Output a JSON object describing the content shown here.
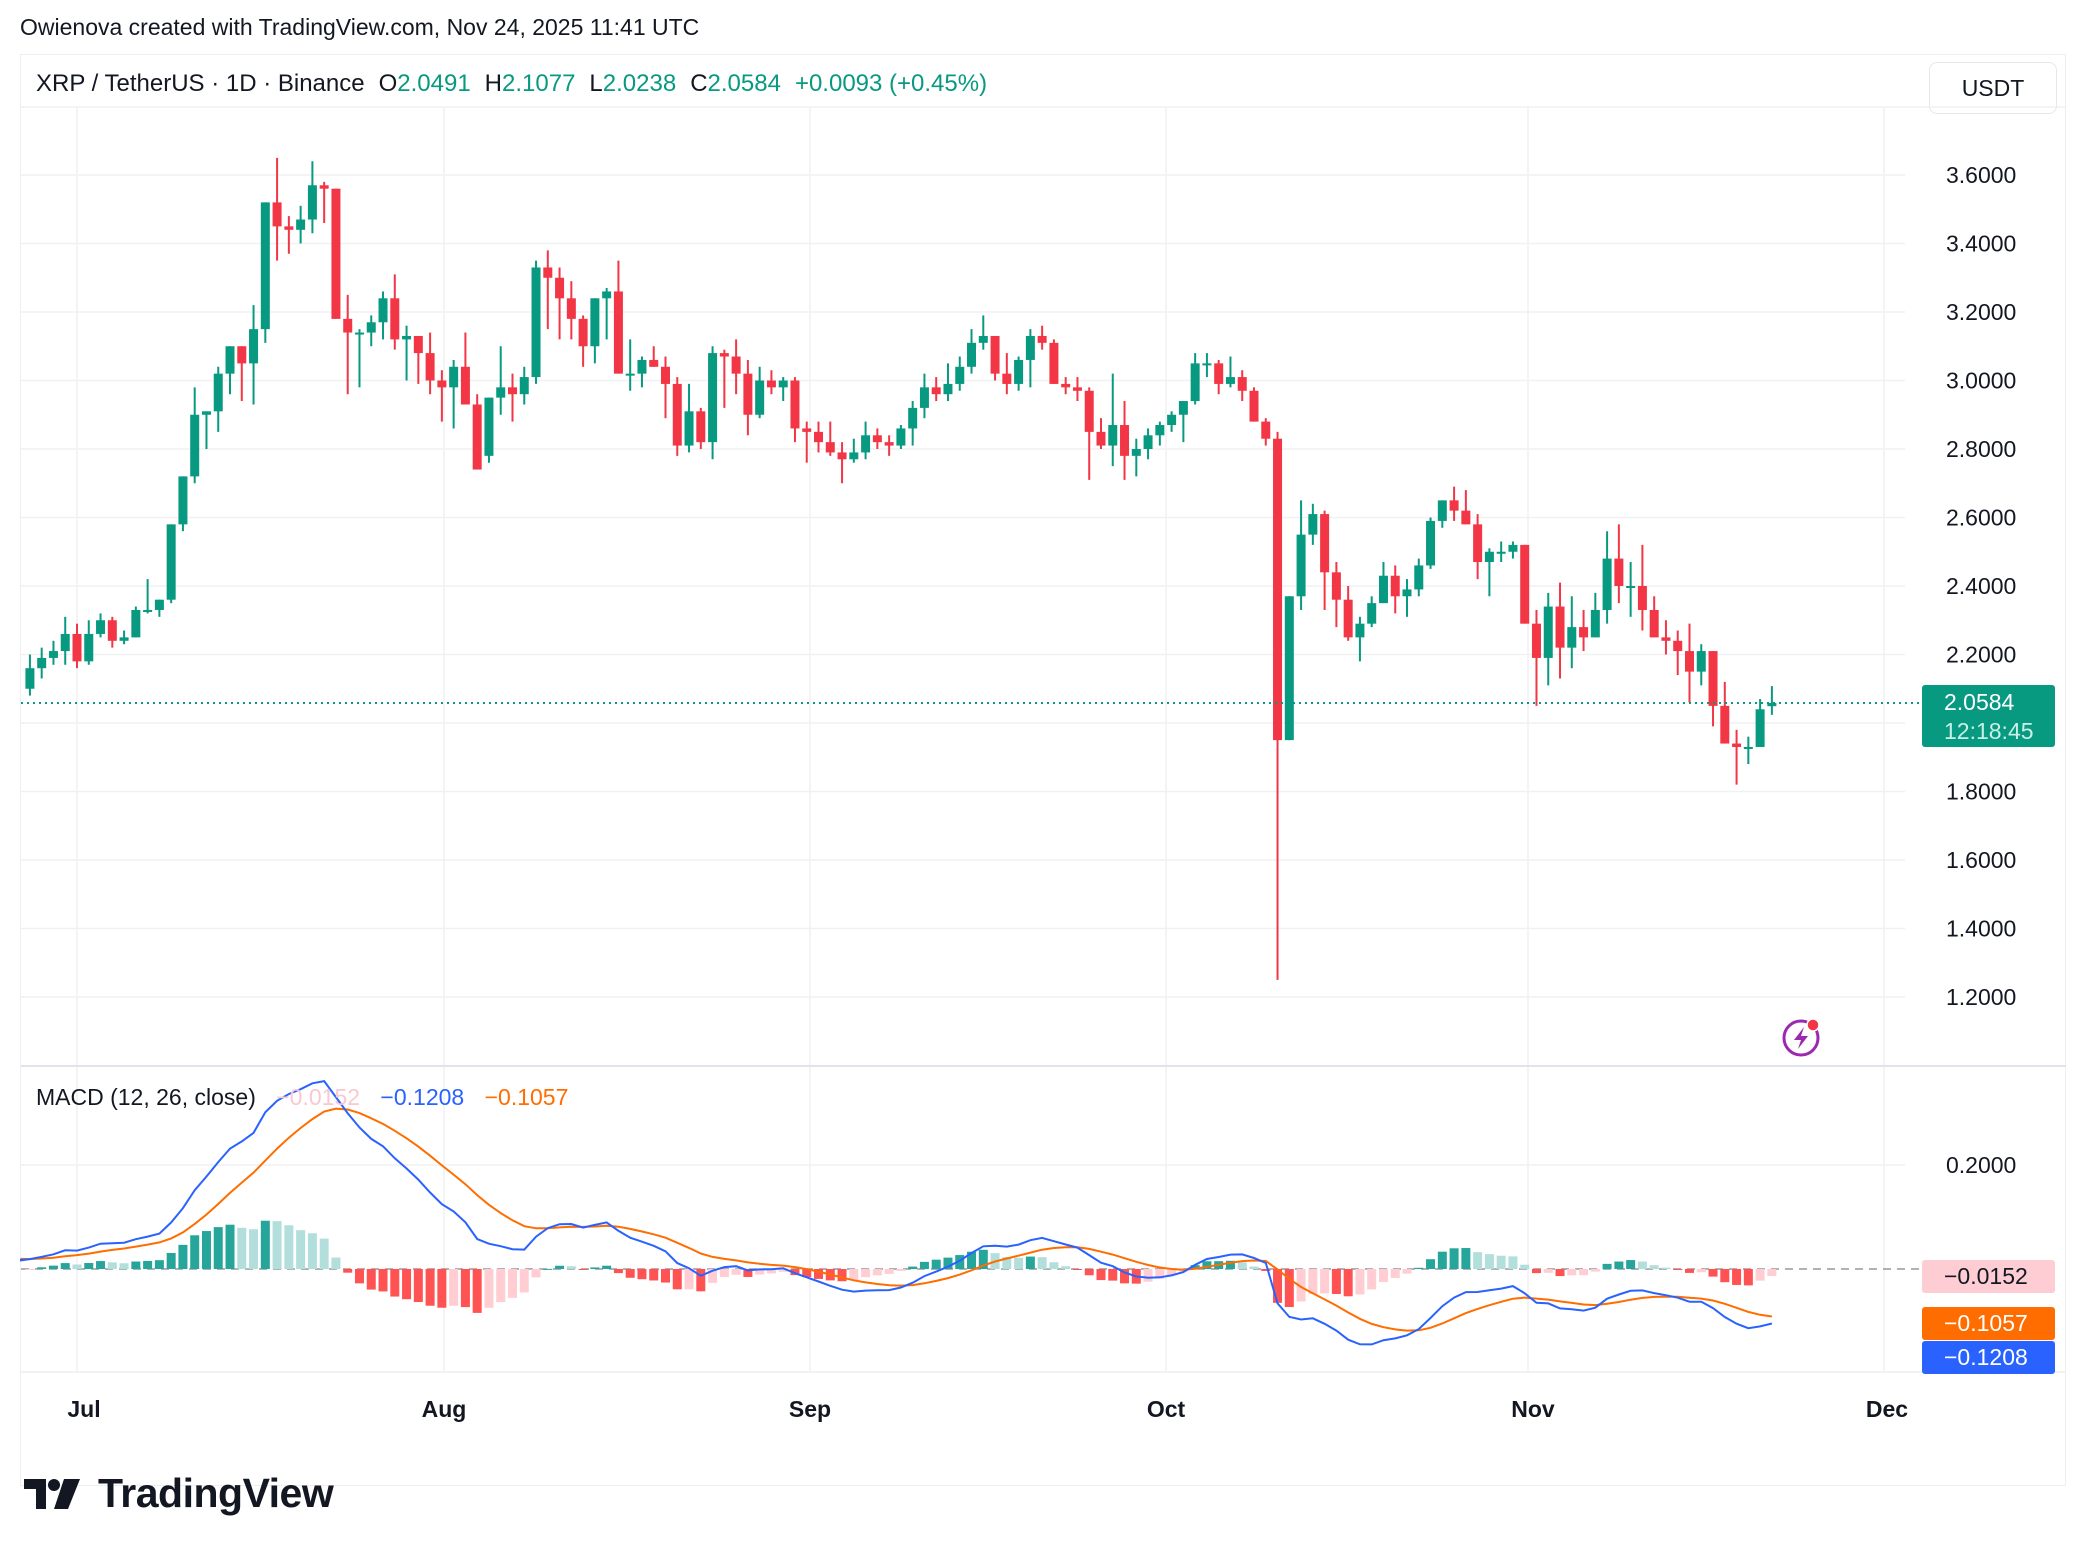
{
  "credit": "Owienova created with TradingView.com, Nov 24, 2025 11:41 UTC",
  "header": {
    "symbol": "XRP / TetherUS · 1D · Binance",
    "open_label": "O",
    "open": "2.0491",
    "high_label": "H",
    "high": "2.1077",
    "low_label": "L",
    "low": "2.0238",
    "close_label": "C",
    "close": "2.0584",
    "change": "+0.0093 (+0.45%)",
    "currency": "USDT"
  },
  "last_price": {
    "value": "2.0584",
    "countdown": "12:18:45"
  },
  "colors": {
    "up": "#089981",
    "down": "#f23645",
    "macd": "#2962ff",
    "signal": "#ff6d00",
    "hist_up_strong": "#26a69a",
    "hist_up_weak": "#b2dfdb",
    "hist_down_strong": "#ff5252",
    "hist_down_weak": "#ffcdd2"
  },
  "price_axis": {
    "ticks": [
      "3.6000",
      "3.4000",
      "3.2000",
      "3.0000",
      "2.8000",
      "2.6000",
      "2.4000",
      "2.2000",
      "2.0000",
      "1.8000",
      "1.6000",
      "1.4000",
      "1.2000"
    ]
  },
  "time_axis": {
    "labels": [
      "Jul",
      "Aug",
      "Sep",
      "Oct",
      "Nov",
      "Dec"
    ]
  },
  "macd": {
    "title": "MACD (12, 26, close)",
    "histogram": "−0.0152",
    "macd": "−0.1208",
    "signal": "−0.1057",
    "axis_tick": "0.2000"
  },
  "logo": "TradingView",
  "chart_data": {
    "type": "candlestick",
    "title": "XRP / TetherUS · 1D · Binance",
    "start_date": "2025-06-25",
    "xlabel": "",
    "ylabel": "USDT",
    "ylim": [
      1.1,
      3.75
    ],
    "x_ticks": [
      "Jul",
      "Aug",
      "Sep",
      "Oct",
      "Nov",
      "Dec"
    ],
    "y_ticks": [
      1.2,
      1.4,
      1.6,
      1.8,
      2.0,
      2.2,
      2.4,
      2.6,
      2.8,
      3.0,
      3.2,
      3.4,
      3.6
    ],
    "grid": true,
    "ohlc": [
      [
        2.2,
        2.22,
        2.12,
        2.14
      ],
      [
        2.13,
        2.16,
        2.08,
        2.1
      ],
      [
        2.1,
        2.2,
        2.08,
        2.16
      ],
      [
        2.16,
        2.22,
        2.13,
        2.19
      ],
      [
        2.19,
        2.24,
        2.17,
        2.21
      ],
      [
        2.21,
        2.31,
        2.17,
        2.26
      ],
      [
        2.26,
        2.29,
        2.16,
        2.18
      ],
      [
        2.18,
        2.3,
        2.17,
        2.26
      ],
      [
        2.26,
        2.32,
        2.25,
        2.3
      ],
      [
        2.3,
        2.31,
        2.22,
        2.24
      ],
      [
        2.24,
        2.27,
        2.23,
        2.25
      ],
      [
        2.25,
        2.34,
        2.25,
        2.33
      ],
      [
        2.33,
        2.42,
        2.32,
        2.33
      ],
      [
        2.33,
        2.36,
        2.31,
        2.36
      ],
      [
        2.36,
        2.57,
        2.35,
        2.58
      ],
      [
        2.58,
        2.66,
        2.56,
        2.72
      ],
      [
        2.72,
        2.98,
        2.7,
        2.9
      ],
      [
        2.9,
        2.89,
        2.8,
        2.91
      ],
      [
        2.91,
        3.04,
        2.85,
        3.02
      ],
      [
        3.02,
        3.1,
        2.96,
        3.1
      ],
      [
        3.1,
        3.08,
        2.94,
        3.05
      ],
      [
        3.05,
        3.22,
        2.93,
        3.15
      ],
      [
        3.15,
        3.49,
        3.11,
        3.52
      ],
      [
        3.52,
        3.65,
        3.35,
        3.45
      ],
      [
        3.45,
        3.48,
        3.37,
        3.44
      ],
      [
        3.44,
        3.51,
        3.4,
        3.47
      ],
      [
        3.47,
        3.64,
        3.43,
        3.57
      ],
      [
        3.57,
        3.58,
        3.46,
        3.56
      ],
      [
        3.56,
        3.56,
        3.18,
        3.18
      ],
      [
        3.18,
        3.25,
        2.96,
        3.14
      ],
      [
        3.14,
        3.15,
        2.98,
        3.14
      ],
      [
        3.14,
        3.19,
        3.1,
        3.17
      ],
      [
        3.17,
        3.26,
        3.12,
        3.24
      ],
      [
        3.24,
        3.31,
        3.09,
        3.12
      ],
      [
        3.12,
        3.16,
        3.0,
        3.13
      ],
      [
        3.13,
        3.13,
        2.99,
        3.08
      ],
      [
        3.08,
        3.14,
        2.96,
        3.0
      ],
      [
        3.0,
        3.03,
        2.88,
        2.98
      ],
      [
        2.98,
        3.06,
        2.86,
        3.04
      ],
      [
        3.04,
        3.14,
        2.95,
        2.93
      ],
      [
        2.93,
        2.96,
        2.84,
        2.74
      ],
      [
        2.78,
        2.93,
        2.76,
        2.95
      ],
      [
        2.95,
        3.1,
        2.9,
        2.98
      ],
      [
        2.98,
        3.02,
        2.88,
        2.96
      ],
      [
        2.96,
        3.04,
        2.93,
        3.01
      ],
      [
        3.01,
        3.35,
        2.99,
        3.33
      ],
      [
        3.33,
        3.38,
        3.15,
        3.3
      ],
      [
        3.3,
        3.33,
        3.12,
        3.24
      ],
      [
        3.24,
        3.29,
        3.12,
        3.18
      ],
      [
        3.18,
        3.19,
        3.04,
        3.1
      ],
      [
        3.1,
        3.18,
        3.05,
        3.24
      ],
      [
        3.24,
        3.27,
        3.12,
        3.26
      ],
      [
        3.26,
        3.35,
        3.08,
        3.02
      ],
      [
        3.02,
        3.12,
        2.97,
        3.02
      ],
      [
        3.02,
        3.07,
        2.98,
        3.06
      ],
      [
        3.06,
        3.1,
        3.04,
        3.04
      ],
      [
        3.04,
        3.07,
        2.89,
        2.99
      ],
      [
        2.99,
        3.01,
        2.78,
        2.81
      ],
      [
        2.81,
        2.99,
        2.79,
        2.91
      ],
      [
        2.91,
        2.92,
        2.8,
        2.82
      ],
      [
        2.82,
        3.1,
        2.77,
        3.08
      ],
      [
        3.08,
        3.09,
        2.92,
        3.07
      ],
      [
        3.07,
        3.12,
        2.96,
        3.02
      ],
      [
        3.02,
        3.06,
        2.84,
        2.9
      ],
      [
        2.9,
        3.04,
        2.89,
        3.0
      ],
      [
        3.0,
        3.03,
        2.96,
        2.98
      ],
      [
        2.98,
        3.01,
        2.94,
        3.0
      ],
      [
        3.0,
        3.01,
        2.82,
        2.86
      ],
      [
        2.86,
        2.88,
        2.76,
        2.85
      ],
      [
        2.85,
        2.88,
        2.79,
        2.82
      ],
      [
        2.82,
        2.88,
        2.78,
        2.79
      ],
      [
        2.79,
        2.82,
        2.7,
        2.77
      ],
      [
        2.77,
        2.83,
        2.76,
        2.79
      ],
      [
        2.79,
        2.88,
        2.77,
        2.84
      ],
      [
        2.84,
        2.86,
        2.8,
        2.82
      ],
      [
        2.82,
        2.84,
        2.78,
        2.81
      ],
      [
        2.81,
        2.87,
        2.8,
        2.86
      ],
      [
        2.86,
        2.94,
        2.81,
        2.92
      ],
      [
        2.92,
        3.02,
        2.89,
        2.98
      ],
      [
        2.98,
        3.01,
        2.94,
        2.96
      ],
      [
        2.96,
        3.05,
        2.94,
        2.99
      ],
      [
        2.99,
        3.07,
        2.97,
        3.04
      ],
      [
        3.04,
        3.15,
        3.02,
        3.11
      ],
      [
        3.11,
        3.19,
        3.09,
        3.13
      ],
      [
        3.13,
        3.13,
        3.0,
        3.02
      ],
      [
        3.02,
        3.08,
        2.96,
        2.99
      ],
      [
        2.99,
        3.07,
        2.97,
        3.06
      ],
      [
        3.06,
        3.15,
        2.98,
        3.13
      ],
      [
        3.13,
        3.16,
        3.09,
        3.11
      ],
      [
        3.11,
        3.12,
        2.99,
        2.99
      ],
      [
        2.99,
        3.01,
        2.96,
        2.98
      ],
      [
        2.98,
        3.01,
        2.94,
        2.97
      ],
      [
        2.97,
        2.98,
        2.71,
        2.85
      ],
      [
        2.85,
        2.89,
        2.8,
        2.81
      ],
      [
        2.81,
        3.02,
        2.75,
        2.87
      ],
      [
        2.87,
        2.94,
        2.71,
        2.78
      ],
      [
        2.78,
        2.83,
        2.72,
        2.8
      ],
      [
        2.8,
        2.86,
        2.77,
        2.84
      ],
      [
        2.84,
        2.88,
        2.81,
        2.87
      ],
      [
        2.87,
        2.91,
        2.85,
        2.9
      ],
      [
        2.9,
        2.94,
        2.82,
        2.94
      ],
      [
        2.94,
        3.08,
        2.93,
        3.05
      ],
      [
        3.05,
        3.08,
        3.01,
        3.05
      ],
      [
        3.05,
        3.06,
        2.96,
        2.99
      ],
      [
        2.99,
        3.07,
        2.98,
        3.01
      ],
      [
        3.01,
        3.03,
        2.94,
        2.97
      ],
      [
        2.97,
        2.98,
        2.91,
        2.88
      ],
      [
        2.88,
        2.89,
        2.81,
        2.83
      ],
      [
        2.83,
        2.85,
        1.25,
        1.95
      ],
      [
        1.95,
        2.33,
        2.3,
        2.37
      ],
      [
        2.37,
        2.65,
        2.33,
        2.55
      ],
      [
        2.55,
        2.64,
        2.52,
        2.61
      ],
      [
        2.61,
        2.62,
        2.33,
        2.44
      ],
      [
        2.44,
        2.47,
        2.28,
        2.36
      ],
      [
        2.36,
        2.4,
        2.24,
        2.25
      ],
      [
        2.25,
        2.31,
        2.18,
        2.29
      ],
      [
        2.29,
        2.37,
        2.28,
        2.35
      ],
      [
        2.35,
        2.47,
        2.35,
        2.43
      ],
      [
        2.43,
        2.46,
        2.32,
        2.37
      ],
      [
        2.37,
        2.42,
        2.31,
        2.39
      ],
      [
        2.39,
        2.48,
        2.37,
        2.46
      ],
      [
        2.46,
        2.6,
        2.45,
        2.59
      ],
      [
        2.59,
        2.65,
        2.57,
        2.65
      ],
      [
        2.65,
        2.69,
        2.59,
        2.62
      ],
      [
        2.62,
        2.68,
        2.58,
        2.58
      ],
      [
        2.58,
        2.61,
        2.42,
        2.47
      ],
      [
        2.47,
        2.51,
        2.37,
        2.5
      ],
      [
        2.5,
        2.53,
        2.47,
        2.5
      ],
      [
        2.5,
        2.53,
        2.48,
        2.52
      ],
      [
        2.52,
        2.51,
        2.29,
        2.29
      ],
      [
        2.29,
        2.33,
        2.05,
        2.19
      ],
      [
        2.19,
        2.38,
        2.11,
        2.34
      ],
      [
        2.34,
        2.41,
        2.13,
        2.22
      ],
      [
        2.22,
        2.37,
        2.16,
        2.28
      ],
      [
        2.28,
        2.33,
        2.21,
        2.25
      ],
      [
        2.25,
        2.38,
        2.25,
        2.33
      ],
      [
        2.33,
        2.56,
        2.29,
        2.48
      ],
      [
        2.48,
        2.58,
        2.35,
        2.4
      ],
      [
        2.4,
        2.47,
        2.31,
        2.4
      ],
      [
        2.4,
        2.52,
        2.27,
        2.33
      ],
      [
        2.33,
        2.37,
        2.26,
        2.25
      ],
      [
        2.25,
        2.3,
        2.2,
        2.24
      ],
      [
        2.24,
        2.27,
        2.14,
        2.21
      ],
      [
        2.21,
        2.29,
        2.06,
        2.15
      ],
      [
        2.15,
        2.23,
        2.11,
        2.21
      ],
      [
        2.21,
        2.21,
        1.99,
        2.05
      ],
      [
        2.05,
        2.12,
        1.96,
        1.94
      ],
      [
        1.94,
        1.98,
        1.82,
        1.93
      ],
      [
        1.93,
        1.96,
        1.88,
        1.93
      ],
      [
        1.93,
        2.07,
        1.95,
        2.04
      ],
      [
        2.0491,
        2.1077,
        2.0238,
        2.0584
      ]
    ]
  }
}
